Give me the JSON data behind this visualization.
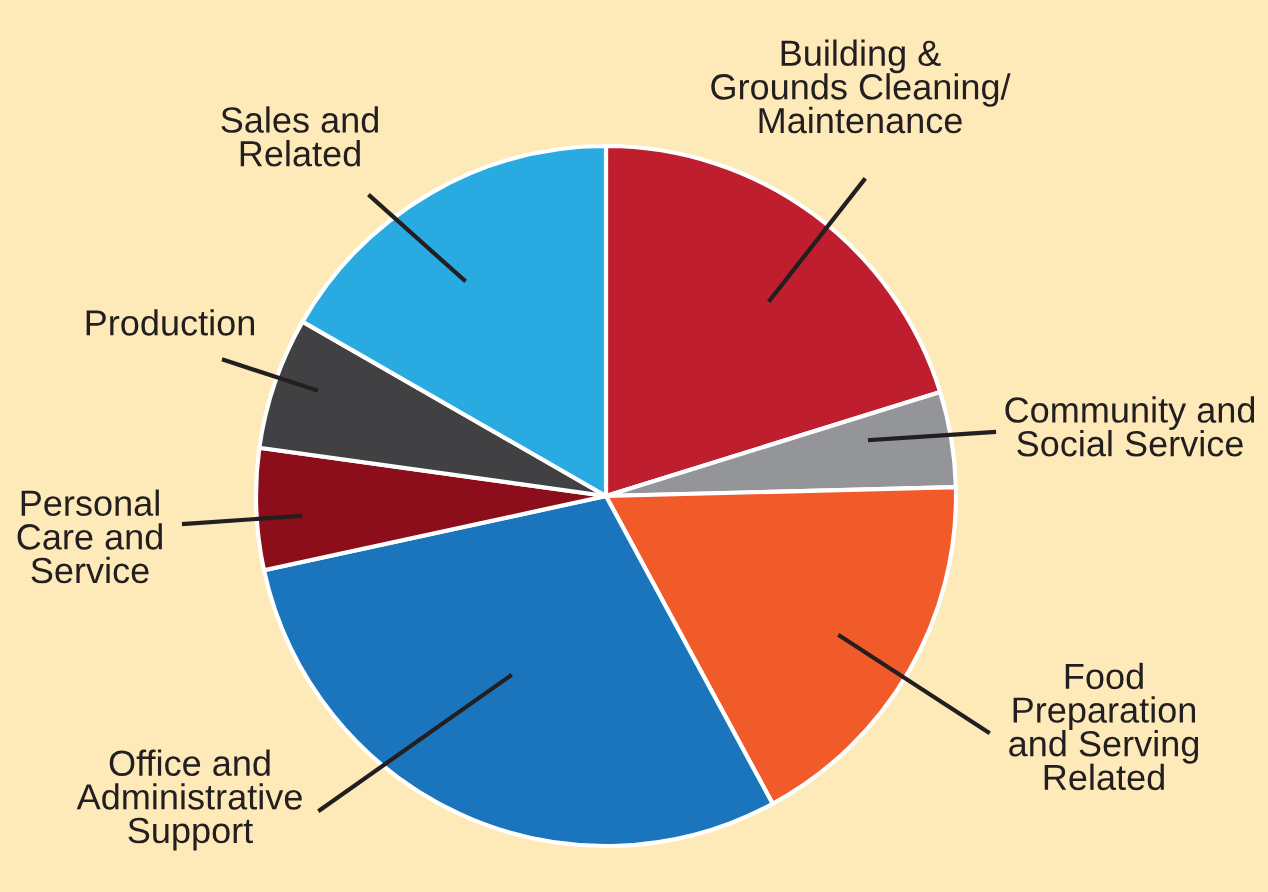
{
  "chart_data": {
    "type": "pie",
    "categories": [
      "Building &\nGrounds Cleaning/\nMaintenance",
      "Community and\nSocial Service",
      "Food\nPreparation\nand Serving\nRelated",
      "Office and\nAdministrative\nSupport",
      "Personal\nCare and\nService",
      "Production",
      "Sales and\nRelated"
    ],
    "values": [
      20.2,
      4.4,
      17.5,
      29.5,
      5.6,
      6.1,
      16.7
    ],
    "colors": [
      "#be1e2d",
      "#939598",
      "#f15a29",
      "#1b75bc",
      "#8b0e1a",
      "#414042",
      "#29abe2"
    ],
    "legend": false
  }
}
